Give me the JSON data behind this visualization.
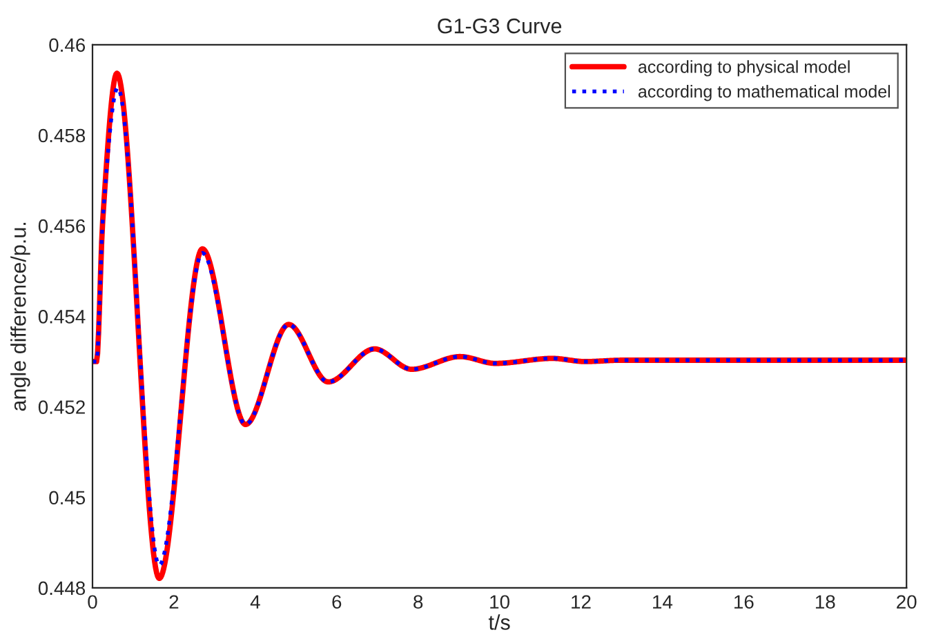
{
  "chart_data": {
    "type": "line",
    "title": "G1-G3 Curve",
    "xlabel": "t/s",
    "ylabel": "angle difference/p.u.",
    "xlim": [
      0,
      20
    ],
    "ylim": [
      0.448,
      0.46
    ],
    "xticks": [
      0,
      2,
      4,
      6,
      8,
      10,
      12,
      14,
      16,
      18,
      20
    ],
    "yticks": [
      0.448,
      0.45,
      0.452,
      0.454,
      0.456,
      0.458,
      0.46
    ],
    "grid": false,
    "legend": "top right",
    "marker": "none",
    "series": [
      {
        "name": "according to physical model",
        "color": "#ff0000",
        "line_style": "solid",
        "x": [
          0,
          0.1,
          0.25,
          0.6,
          1.64,
          2.7,
          3.76,
          4.82,
          5.79,
          6.93,
          7.84,
          9.03,
          9.9,
          11.3,
          12.1,
          13,
          20
        ],
        "values": [
          0.453,
          0.453,
          0.4561,
          0.45937,
          0.44821,
          0.45549,
          0.45161,
          0.45382,
          0.45255,
          0.45328,
          0.45283,
          0.45311,
          0.45296,
          0.45307,
          0.453,
          0.45303,
          0.45303
        ]
      },
      {
        "name": "according to mathematical model",
        "color": "#0000ff",
        "line_style": "dotted",
        "x": [
          0,
          0.1,
          0.25,
          0.62,
          1.64,
          2.7,
          3.76,
          4.82,
          5.79,
          6.93,
          7.84,
          9.03,
          9.9,
          11.3,
          12.1,
          13,
          20
        ],
        "values": [
          0.453,
          0.453,
          0.4561,
          0.45905,
          0.4485,
          0.4554,
          0.45161,
          0.45382,
          0.45255,
          0.45328,
          0.45283,
          0.45311,
          0.45296,
          0.45307,
          0.453,
          0.45303,
          0.45303
        ]
      }
    ]
  }
}
